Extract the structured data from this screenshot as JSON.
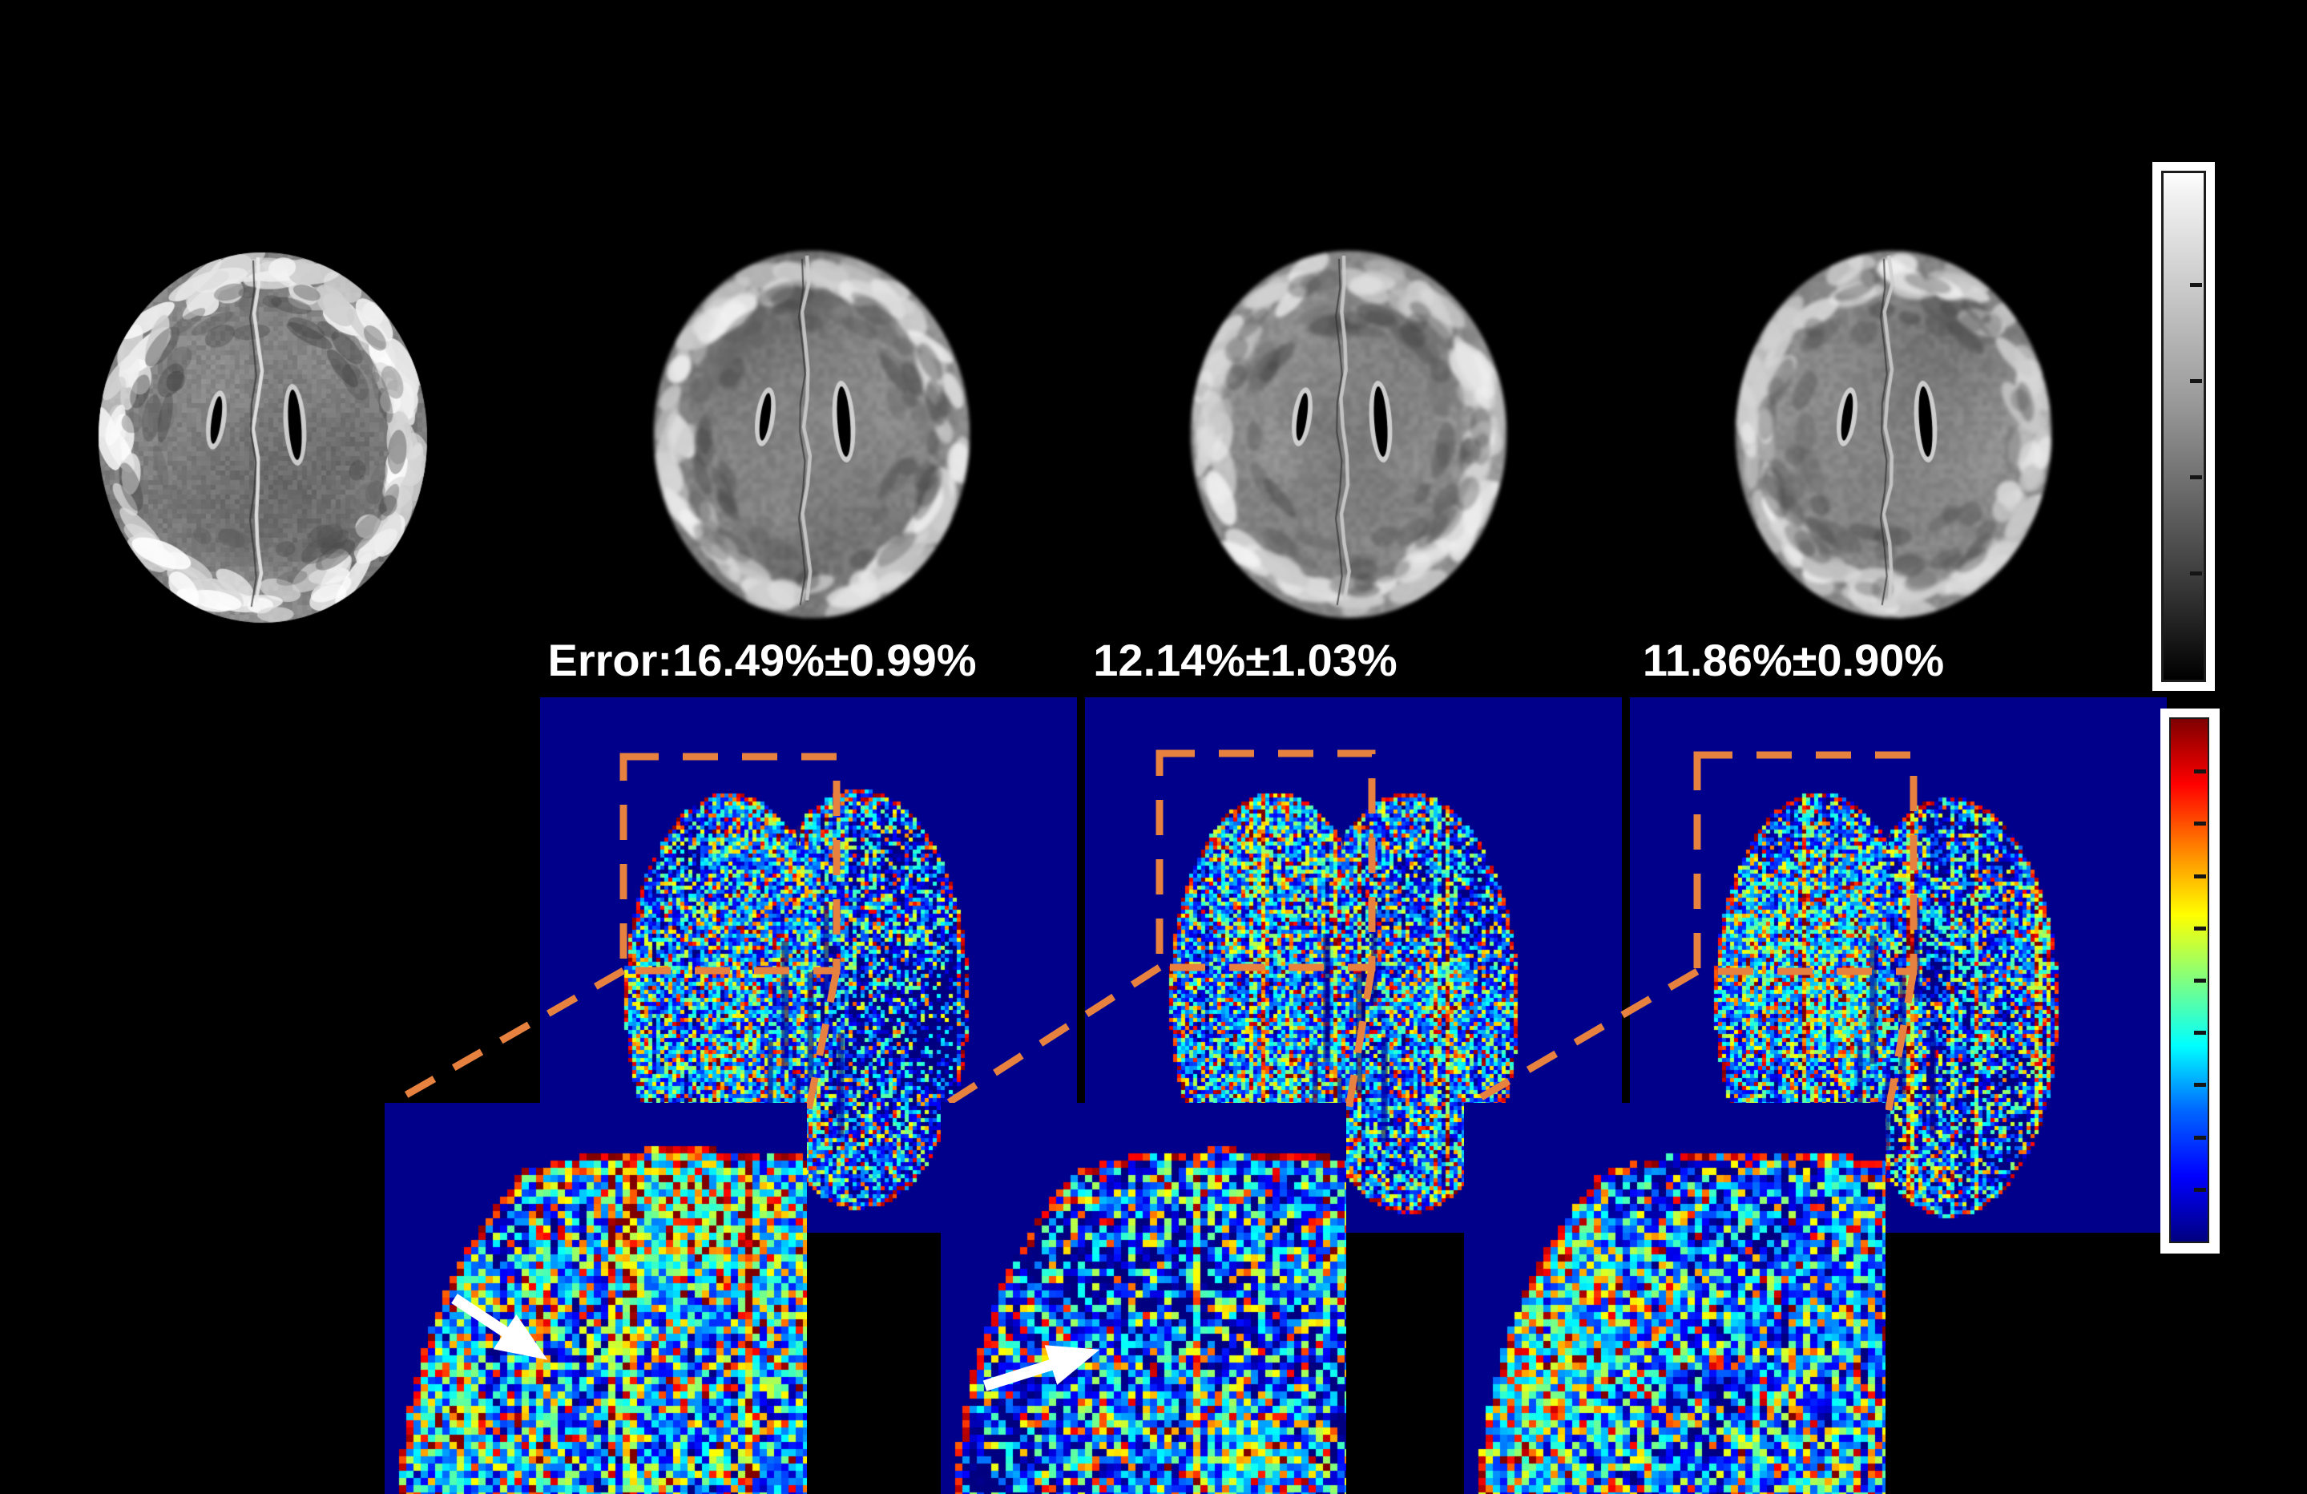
{
  "figure": {
    "kind": "brain-mri-reconstruction-error-comparison",
    "error_labels": [
      "Error:16.49%±0.99%",
      "12.14%±1.03%",
      "11.86%±0.90%"
    ],
    "colors": {
      "background": "#000000",
      "map_background": "#00008B",
      "dash_accent": "#E6813F",
      "annotation_arrow": "#FFFFFF",
      "label_text": "#FFFFFF",
      "colorbar_frame": "#FFFFFF"
    },
    "colorbars": {
      "grayscale": {
        "top": "white",
        "bottom": "black",
        "tick_count": 4
      },
      "jet": {
        "top": "dark red",
        "bottom": "dark blue",
        "tick_count": 9
      }
    },
    "panels": {
      "grayscale_brain_count": 4,
      "error_map_count": 3,
      "zoom_inset_count": 3,
      "zoom_box_count": 3,
      "arrow_count": 2
    }
  }
}
